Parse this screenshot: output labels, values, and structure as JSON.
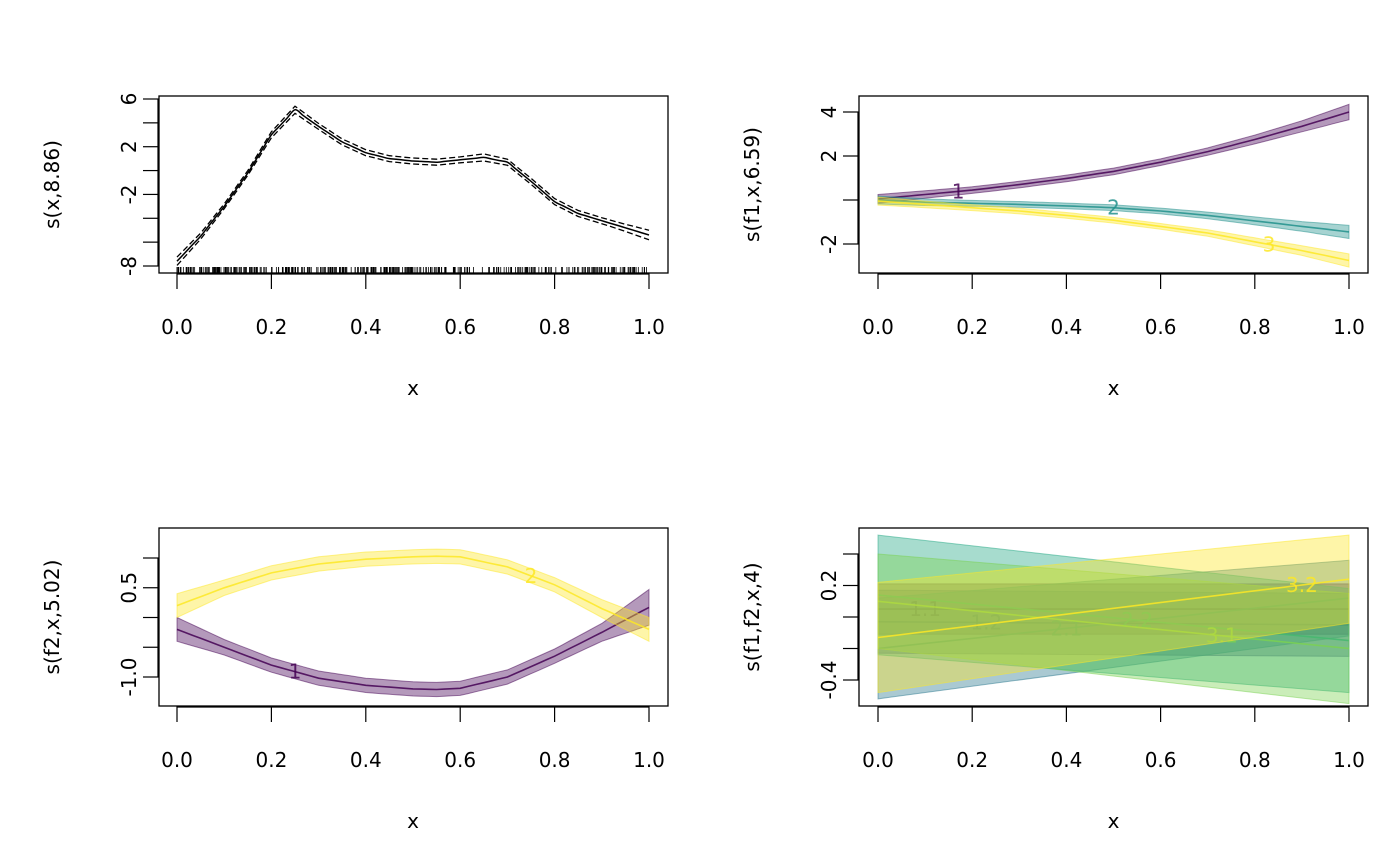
{
  "chart_data": [
    {
      "type": "line",
      "panel": "top-left",
      "ylabel": "s(x,8.86)",
      "xlabel": "x",
      "xlim": [
        0,
        1
      ],
      "ylim": [
        -8,
        6
      ],
      "xticks": [
        0.0,
        0.2,
        0.4,
        0.6,
        0.8,
        1.0
      ],
      "xtick_labels": [
        "0.0",
        "0.2",
        "0.4",
        "0.6",
        "0.8",
        "1.0"
      ],
      "yticks": [
        -8,
        -6,
        -4,
        -2,
        0,
        2,
        4,
        6
      ],
      "ytick_labels": [
        "-8",
        "",
        "",
        "-2",
        "",
        "2",
        "",
        "6"
      ],
      "rug": true,
      "series": [
        {
          "name": "s(x,8.86)",
          "color": "#000000",
          "style": "solid with dashed confidence bounds",
          "x": [
            0.0,
            0.05,
            0.1,
            0.15,
            0.2,
            0.25,
            0.3,
            0.35,
            0.4,
            0.45,
            0.5,
            0.55,
            0.6,
            0.65,
            0.7,
            0.75,
            0.8,
            0.85,
            0.9,
            0.95,
            1.0
          ],
          "y": [
            -7.6,
            -5.5,
            -3.0,
            -0.2,
            3.0,
            5.1,
            3.7,
            2.4,
            1.5,
            1.0,
            0.8,
            0.7,
            0.9,
            1.1,
            0.7,
            -0.9,
            -2.6,
            -3.6,
            -4.2,
            -4.8,
            -5.4
          ],
          "se": [
            0.35,
            0.25,
            0.2,
            0.2,
            0.25,
            0.3,
            0.25,
            0.25,
            0.25,
            0.25,
            0.25,
            0.25,
            0.25,
            0.3,
            0.25,
            0.25,
            0.25,
            0.25,
            0.25,
            0.3,
            0.4
          ]
        }
      ]
    },
    {
      "type": "line",
      "panel": "top-right",
      "ylabel": "s(f1,x,6.59)",
      "xlabel": "x",
      "xlim": [
        0,
        1
      ],
      "ylim": [
        -3.3,
        4.6
      ],
      "xticks": [
        0.0,
        0.2,
        0.4,
        0.6,
        0.8,
        1.0
      ],
      "xtick_labels": [
        "0.0",
        "0.2",
        "0.4",
        "0.6",
        "0.8",
        "1.0"
      ],
      "yticks": [
        -2,
        0,
        2,
        4
      ],
      "ytick_labels": [
        "-2",
        "",
        "2",
        "4"
      ],
      "series": [
        {
          "name": "1",
          "color": "#440154",
          "label_at_x": 0.17,
          "x": [
            0.0,
            0.1,
            0.2,
            0.3,
            0.4,
            0.5,
            0.6,
            0.7,
            0.8,
            0.9,
            1.0
          ],
          "y": [
            0.05,
            0.25,
            0.45,
            0.7,
            0.98,
            1.3,
            1.72,
            2.2,
            2.75,
            3.35,
            4.0
          ],
          "se": [
            0.2,
            0.17,
            0.15,
            0.15,
            0.15,
            0.15,
            0.15,
            0.17,
            0.2,
            0.25,
            0.35
          ]
        },
        {
          "name": "2",
          "color": "#21908C",
          "label_at_x": 0.5,
          "x": [
            0.0,
            0.1,
            0.2,
            0.3,
            0.4,
            0.5,
            0.6,
            0.7,
            0.8,
            0.9,
            1.0
          ],
          "y": [
            0.0,
            -0.1,
            -0.15,
            -0.2,
            -0.27,
            -0.35,
            -0.5,
            -0.7,
            -0.95,
            -1.2,
            -1.45
          ],
          "se": [
            0.18,
            0.15,
            0.13,
            0.13,
            0.13,
            0.13,
            0.13,
            0.15,
            0.18,
            0.22,
            0.3
          ]
        },
        {
          "name": "3",
          "color": "#FDE725",
          "label_at_x": 0.83,
          "x": [
            0.0,
            0.1,
            0.2,
            0.3,
            0.4,
            0.5,
            0.6,
            0.7,
            0.8,
            0.9,
            1.0
          ],
          "y": [
            -0.05,
            -0.2,
            -0.35,
            -0.5,
            -0.7,
            -0.92,
            -1.2,
            -1.5,
            -1.9,
            -2.3,
            -2.75
          ],
          "se": [
            0.18,
            0.15,
            0.13,
            0.13,
            0.13,
            0.13,
            0.13,
            0.15,
            0.18,
            0.22,
            0.3
          ]
        }
      ]
    },
    {
      "type": "line",
      "panel": "bottom-left",
      "ylabel": "s(f2,x,5.02)",
      "xlabel": "x",
      "xlim": [
        0,
        1
      ],
      "ylim": [
        -1.5,
        1.5
      ],
      "xticks": [
        0.0,
        0.2,
        0.4,
        0.6,
        0.8,
        1.0
      ],
      "xtick_labels": [
        "0.0",
        "0.2",
        "0.4",
        "0.6",
        "0.8",
        "1.0"
      ],
      "yticks": [
        -1.0,
        -0.5,
        0.0,
        0.5,
        1.0
      ],
      "ytick_labels": [
        "-1.0",
        "",
        "",
        "0.5",
        ""
      ],
      "series": [
        {
          "name": "1",
          "color": "#440154",
          "label_at_x": 0.25,
          "x": [
            0.0,
            0.1,
            0.2,
            0.3,
            0.4,
            0.5,
            0.55,
            0.6,
            0.7,
            0.8,
            0.9,
            1.0
          ],
          "y": [
            -0.2,
            -0.5,
            -0.8,
            -1.02,
            -1.14,
            -1.2,
            -1.21,
            -1.19,
            -1.0,
            -0.65,
            -0.25,
            0.17
          ],
          "se": [
            0.2,
            0.13,
            0.12,
            0.12,
            0.12,
            0.12,
            0.12,
            0.12,
            0.12,
            0.12,
            0.15,
            0.3
          ]
        },
        {
          "name": "2",
          "color": "#FDE725",
          "label_at_x": 0.75,
          "x": [
            0.0,
            0.1,
            0.2,
            0.3,
            0.4,
            0.5,
            0.55,
            0.6,
            0.7,
            0.8,
            0.9,
            1.0
          ],
          "y": [
            0.2,
            0.5,
            0.75,
            0.9,
            0.98,
            1.02,
            1.03,
            1.02,
            0.85,
            0.55,
            0.15,
            -0.2
          ],
          "se": [
            0.2,
            0.13,
            0.12,
            0.12,
            0.12,
            0.12,
            0.12,
            0.12,
            0.12,
            0.12,
            0.15,
            0.2
          ]
        }
      ]
    },
    {
      "type": "line",
      "panel": "bottom-right",
      "ylabel": "s(f1,f2,x,4)",
      "xlabel": "x",
      "xlim": [
        0,
        1
      ],
      "ylim": [
        -0.57,
        0.57
      ],
      "xticks": [
        0.0,
        0.2,
        0.4,
        0.6,
        0.8,
        1.0
      ],
      "xtick_labels": [
        "0.0",
        "0.2",
        "0.4",
        "0.6",
        "0.8",
        "1.0"
      ],
      "yticks": [
        -0.4,
        -0.2,
        0.0,
        0.2,
        0.4
      ],
      "ytick_labels": [
        "-0.4",
        "",
        "",
        "0.2",
        ""
      ],
      "series": [
        {
          "name": "1.1",
          "color": "#440154",
          "label_at_x": 0.1,
          "x": [
            0,
            1
          ],
          "y": [
            0.05,
            0.05
          ],
          "se": [
            0.16,
            0.16
          ]
        },
        {
          "name": "1.2",
          "color": "#414487",
          "label_at_x": 0.23,
          "x": [
            0,
            1
          ],
          "y": [
            -0.03,
            -0.05
          ],
          "se": [
            0.2,
            0.2
          ]
        },
        {
          "name": "2.1",
          "color": "#2A788E",
          "label_at_x": 0.4,
          "x": [
            0,
            1
          ],
          "y": [
            -0.2,
            0.12
          ],
          "se": [
            0.32,
            0.24
          ]
        },
        {
          "name": "2.2",
          "color": "#22A884",
          "label_at_x": 0.55,
          "x": [
            0,
            1
          ],
          "y": [
            0.14,
            -0.15
          ],
          "se": [
            0.38,
            0.33
          ]
        },
        {
          "name": "3.1",
          "color": "#7AD151",
          "label_at_x": 0.73,
          "x": [
            0,
            1
          ],
          "y": [
            0.1,
            -0.2
          ],
          "se": [
            0.3,
            0.35
          ]
        },
        {
          "name": "3.2",
          "color": "#FDE725",
          "label_at_x": 0.9,
          "x": [
            0,
            1
          ],
          "y": [
            -0.13,
            0.24
          ],
          "se": [
            0.35,
            0.28
          ]
        }
      ]
    }
  ]
}
